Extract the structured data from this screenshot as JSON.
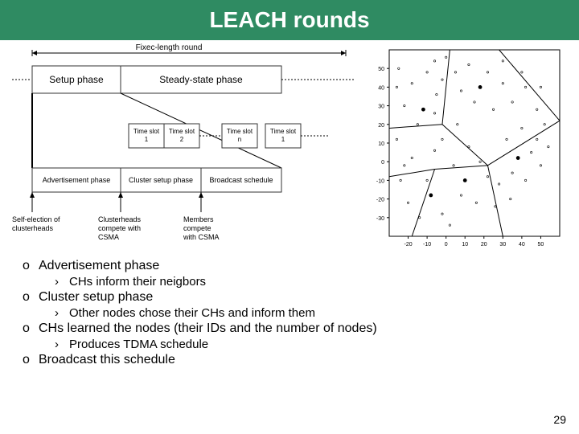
{
  "title": "LEACH rounds",
  "page_number": "29",
  "timing": {
    "top_label": "Fixec-length round",
    "phases_row1": [
      "Setup phase",
      "Steady-state phase"
    ],
    "phases_row2": [
      "Advertisement phase",
      "Cluster setup phase",
      "Broadcast schedule"
    ],
    "slots": [
      "Time slot 1",
      "Time slot 2",
      "Time slot n",
      "Time slot 1"
    ],
    "annotations": [
      "Self-election of clusterheads",
      "Clusterheads compete with CSMA",
      "Members compete with CSMA"
    ],
    "line_color": "#000000",
    "box_border": "#333333",
    "font_size": 10
  },
  "voronoi": {
    "xlim": [
      -30,
      60
    ],
    "ylim": [
      -40,
      60
    ],
    "xticks": [
      -20,
      -10,
      0,
      10,
      20,
      30,
      40,
      50
    ],
    "yticks": [
      -30,
      -20,
      -10,
      0,
      10,
      20,
      30,
      40,
      50
    ],
    "border_color": "#000000",
    "node_color": "#000000",
    "small_node_r": 1.2,
    "ch_node_r": 2.4,
    "cluster_heads": [
      [
        -12,
        28
      ],
      [
        18,
        40
      ],
      [
        38,
        2
      ],
      [
        10,
        -10
      ],
      [
        -8,
        -18
      ]
    ],
    "nodes": [
      [
        -25,
        50
      ],
      [
        -18,
        42
      ],
      [
        -10,
        48
      ],
      [
        -5,
        36
      ],
      [
        -22,
        30
      ],
      [
        -15,
        20
      ],
      [
        -6,
        26
      ],
      [
        -2,
        44
      ],
      [
        5,
        48
      ],
      [
        12,
        52
      ],
      [
        22,
        48
      ],
      [
        30,
        42
      ],
      [
        15,
        32
      ],
      [
        8,
        38
      ],
      [
        25,
        28
      ],
      [
        35,
        32
      ],
      [
        42,
        40
      ],
      [
        48,
        28
      ],
      [
        40,
        18
      ],
      [
        32,
        12
      ],
      [
        45,
        5
      ],
      [
        50,
        -2
      ],
      [
        42,
        -10
      ],
      [
        35,
        -6
      ],
      [
        28,
        -12
      ],
      [
        48,
        12
      ],
      [
        6,
        20
      ],
      [
        -2,
        12
      ],
      [
        12,
        8
      ],
      [
        18,
        0
      ],
      [
        4,
        -2
      ],
      [
        -6,
        6
      ],
      [
        22,
        -8
      ],
      [
        8,
        -18
      ],
      [
        16,
        -22
      ],
      [
        -2,
        -28
      ],
      [
        -14,
        -30
      ],
      [
        -20,
        -22
      ],
      [
        -24,
        -10
      ],
      [
        -18,
        2
      ],
      [
        -26,
        12
      ],
      [
        -22,
        -2
      ],
      [
        26,
        -24
      ],
      [
        34,
        -20
      ],
      [
        -10,
        -10
      ],
      [
        2,
        -34
      ],
      [
        40,
        48
      ],
      [
        52,
        20
      ],
      [
        54,
        8
      ],
      [
        -26,
        40
      ],
      [
        50,
        40
      ],
      [
        0,
        56
      ],
      [
        30,
        54
      ],
      [
        -6,
        54
      ]
    ],
    "edges": [
      [
        [
          -30,
          18
        ],
        [
          -2,
          20
        ]
      ],
      [
        [
          -2,
          20
        ],
        [
          2,
          60
        ]
      ],
      [
        [
          -2,
          20
        ],
        [
          22,
          -2
        ]
      ],
      [
        [
          22,
          -2
        ],
        [
          60,
          22
        ]
      ],
      [
        [
          22,
          -2
        ],
        [
          30,
          -40
        ]
      ],
      [
        [
          22,
          -2
        ],
        [
          -6,
          -4
        ]
      ],
      [
        [
          -6,
          -4
        ],
        [
          -30,
          -8
        ]
      ],
      [
        [
          -6,
          -4
        ],
        [
          -18,
          -40
        ]
      ],
      [
        [
          2,
          60
        ],
        [
          28,
          60
        ]
      ],
      [
        [
          28,
          60
        ],
        [
          60,
          22
        ]
      ]
    ]
  },
  "bullets": [
    {
      "lvl": 1,
      "text": "Advertisement phase"
    },
    {
      "lvl": 2,
      "text": "CHs inform their neigbors"
    },
    {
      "lvl": 1,
      "text": "Cluster setup phase"
    },
    {
      "lvl": 2,
      "text": "Other nodes chose their CHs and inform them"
    },
    {
      "lvl": 1,
      "text": "CHs learned the nodes (their IDs and the number of nodes)"
    },
    {
      "lvl": 2,
      "text": "Produces TDMA schedule"
    },
    {
      "lvl": 1,
      "text": "Broadcast this schedule"
    }
  ]
}
